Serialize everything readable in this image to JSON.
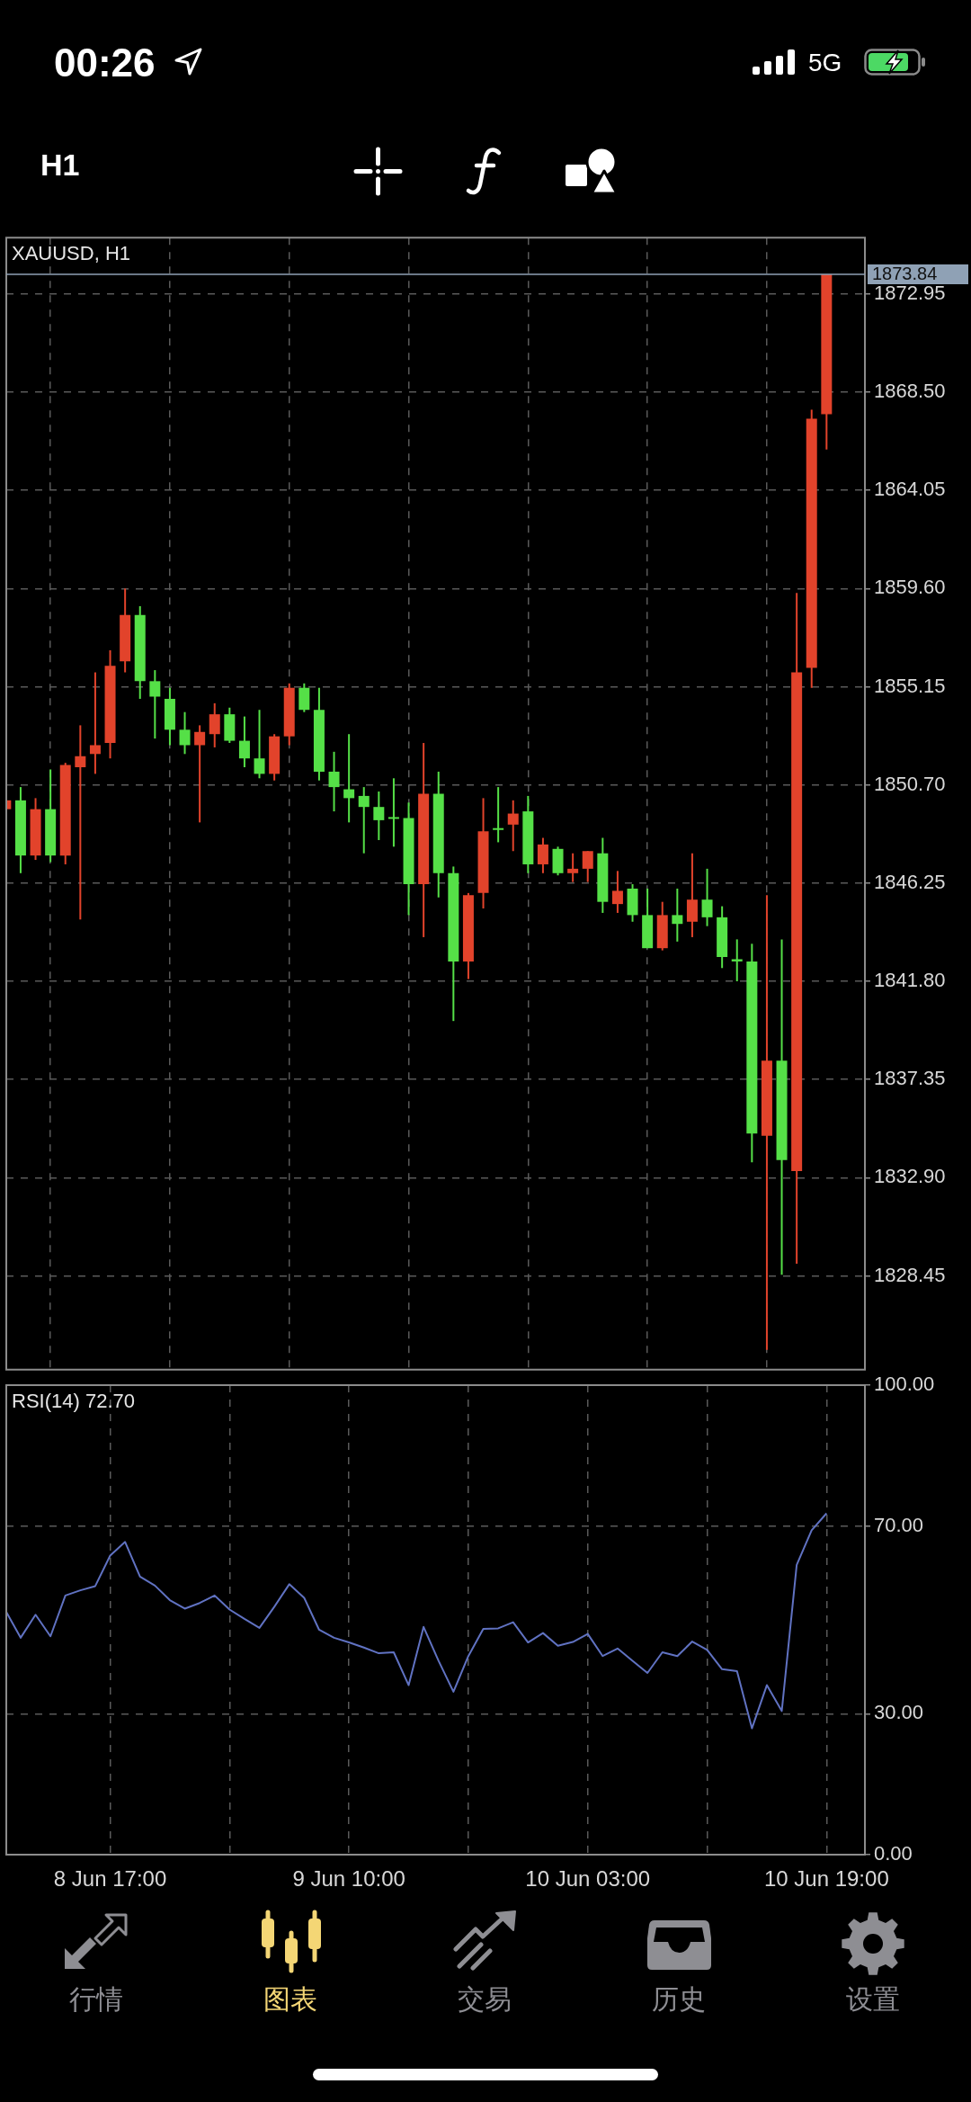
{
  "chart_data": [
    {
      "type": "other",
      "annotations": [
        "00:26",
        "5G",
        "H1"
      ]
    },
    {
      "type": "candlestick",
      "title": "XAUUSD, H1",
      "categories": [
        null,
        null,
        null,
        null,
        null,
        null,
        null,
        null,
        null,
        null,
        null,
        null,
        null,
        null,
        null,
        null,
        null,
        null,
        null,
        null,
        null,
        null,
        null,
        null,
        null,
        null,
        null,
        null,
        null,
        null,
        null,
        null,
        null,
        null,
        null,
        null,
        null,
        null,
        null,
        null,
        null,
        null,
        null,
        null,
        null,
        null,
        null,
        null,
        null,
        null,
        null,
        null,
        null,
        null,
        null,
        null
      ],
      "ohlc": [
        [
          1849.6,
          1850.0,
          1849.5,
          1850.0
        ],
        [
          1850.0,
          1850.6,
          1846.7,
          1847.5
        ],
        [
          1847.5,
          1850.1,
          1847.3,
          1849.6
        ],
        [
          1849.6,
          1851.4,
          1847.2,
          1847.5
        ],
        [
          1847.5,
          1851.7,
          1847.1,
          1851.6
        ],
        [
          1851.5,
          1853.4,
          1844.6,
          1852.0
        ],
        [
          1852.1,
          1855.8,
          1851.2,
          1852.5
        ],
        [
          1852.6,
          1856.8,
          1851.9,
          1856.1
        ],
        [
          1856.3,
          1859.6,
          1855.8,
          1858.4
        ],
        [
          1858.4,
          1858.8,
          1854.6,
          1855.4
        ],
        [
          1855.4,
          1855.9,
          1852.8,
          1854.7
        ],
        [
          1854.6,
          1855.1,
          1852.5,
          1853.2
        ],
        [
          1853.2,
          1854.0,
          1852.1,
          1852.5
        ],
        [
          1852.5,
          1853.4,
          1849.0,
          1853.1
        ],
        [
          1853.0,
          1854.4,
          1852.4,
          1853.9
        ],
        [
          1853.9,
          1854.2,
          1852.6,
          1852.7
        ],
        [
          1852.7,
          1853.8,
          1851.5,
          1851.9
        ],
        [
          1851.9,
          1854.1,
          1851.0,
          1851.2
        ],
        [
          1851.2,
          1853.0,
          1850.9,
          1852.9
        ],
        [
          1852.9,
          1855.3,
          1852.5,
          1855.1
        ],
        [
          1855.1,
          1855.3,
          1854.0,
          1854.1
        ],
        [
          1854.1,
          1855.1,
          1850.9,
          1851.3
        ],
        [
          1851.3,
          1852.2,
          1849.5,
          1850.6
        ],
        [
          1850.5,
          1853.0,
          1849.0,
          1850.1
        ],
        [
          1850.2,
          1850.6,
          1847.6,
          1849.7
        ],
        [
          1849.7,
          1850.4,
          1848.2,
          1849.1
        ],
        [
          1849.2,
          1851.0,
          1847.9,
          1849.2
        ],
        [
          1849.2,
          1849.9,
          1844.8,
          1846.2
        ],
        [
          1846.2,
          1852.6,
          1843.8,
          1850.3
        ],
        [
          1850.3,
          1851.3,
          1845.6,
          1846.7
        ],
        [
          1846.7,
          1847.0,
          1840.0,
          1842.7
        ],
        [
          1842.7,
          1845.8,
          1841.9,
          1845.7
        ],
        [
          1845.8,
          1850.1,
          1845.1,
          1848.6
        ],
        [
          1848.7,
          1850.6,
          1848.1,
          1848.7
        ],
        [
          1848.9,
          1850.0,
          1847.7,
          1849.4
        ],
        [
          1849.5,
          1850.2,
          1846.7,
          1847.1
        ],
        [
          1847.1,
          1848.3,
          1846.7,
          1848.0
        ],
        [
          1847.8,
          1847.9,
          1846.6,
          1846.7
        ],
        [
          1846.7,
          1847.6,
          1846.3,
          1846.9
        ],
        [
          1846.9,
          1847.7,
          1846.3,
          1847.7
        ],
        [
          1847.6,
          1848.3,
          1844.9,
          1845.4
        ],
        [
          1845.3,
          1846.8,
          1844.9,
          1845.9
        ],
        [
          1846.0,
          1846.2,
          1844.5,
          1844.8
        ],
        [
          1844.8,
          1846.0,
          1843.3,
          1843.3
        ],
        [
          1843.3,
          1845.4,
          1843.2,
          1844.8
        ],
        [
          1844.8,
          1846.0,
          1843.6,
          1844.4
        ],
        [
          1844.5,
          1847.6,
          1843.8,
          1845.5
        ],
        [
          1845.5,
          1846.9,
          1844.3,
          1844.7
        ],
        [
          1844.7,
          1845.2,
          1842.4,
          1842.9
        ],
        [
          1842.8,
          1843.7,
          1841.8,
          1842.7
        ],
        [
          1842.7,
          1843.5,
          1833.6,
          1834.9
        ],
        [
          1834.8,
          1845.7,
          1825.1,
          1838.2
        ],
        [
          1838.2,
          1843.7,
          1828.5,
          1833.7
        ],
        [
          1833.2,
          1859.4,
          1829.0,
          1855.8
        ],
        [
          1856.0,
          1867.7,
          1855.1,
          1867.3
        ],
        [
          1867.5,
          1873.84,
          1865.9,
          1873.84
        ]
      ],
      "colors": [
        "#e2432b",
        "#55e047",
        "#e2432b",
        "#55e047",
        "#e2432b",
        "#e2432b",
        "#e2432b",
        "#e2432b",
        "#e2432b",
        "#55e047",
        "#55e047",
        "#55e047",
        "#55e047",
        "#e2432b",
        "#e2432b",
        "#55e047",
        "#55e047",
        "#55e047",
        "#e2432b",
        "#e2432b",
        "#55e047",
        "#55e047",
        "#55e047",
        "#55e047",
        "#55e047",
        "#55e047",
        "#55e047",
        "#55e047",
        "#e2432b",
        "#55e047",
        "#55e047",
        "#e2432b",
        "#e2432b",
        "#55e047",
        "#e2432b",
        "#55e047",
        "#e2432b",
        "#55e047",
        "#e2432b",
        "#e2432b",
        "#55e047",
        "#e2432b",
        "#55e047",
        "#55e047",
        "#e2432b",
        "#55e047",
        "#e2432b",
        "#55e047",
        "#55e047",
        "#55e047",
        "#55e047",
        "#e2432b",
        "#55e047",
        "#e2432b",
        "#e2432b",
        "#e2432b"
      ],
      "ylim": [
        1824.2,
        1875.5
      ],
      "yticks": [
        1828.45,
        {
          "value": 1832.9,
          "label": "1832.90"
        },
        1837.35,
        {
          "value": 1841.8,
          "label": "1841.80"
        },
        1846.25,
        {
          "value": 1850.7,
          "label": "1850.70"
        },
        1855.15,
        {
          "value": 1859.6,
          "label": "1859.60"
        },
        1864.05,
        {
          "value": 1868.5,
          "label": "1868.50"
        },
        1872.95
      ],
      "ref_lines": [
        {
          "axis": "y",
          "value": 1873.84,
          "label": "1873.84",
          "color": "#8fa1b5"
        }
      ],
      "grid": true,
      "tick_labels": "y"
    },
    {
      "type": "line",
      "title": "RSI(14) 72.70",
      "categories": [
        null,
        null,
        null,
        null,
        null,
        null,
        null,
        "8 Jun 17:00",
        null,
        null,
        null,
        null,
        null,
        null,
        null,
        null,
        null,
        null,
        null,
        null,
        null,
        null,
        null,
        "9 Jun 10:00",
        null,
        null,
        null,
        null,
        null,
        null,
        null,
        null,
        null,
        null,
        null,
        null,
        null,
        null,
        null,
        "10 Jun 03:00",
        null,
        null,
        null,
        null,
        null,
        null,
        null,
        null,
        null,
        null,
        null,
        null,
        null,
        null,
        null,
        "10 Jun 19:00"
      ],
      "values": [
        51.9,
        46.2,
        51.1,
        46.5,
        55.2,
        56.3,
        57.2,
        63.7,
        66.6,
        59.2,
        57.3,
        54.2,
        52.4,
        53.6,
        55.2,
        52.2,
        50.2,
        48.3,
        52.8,
        57.6,
        54.7,
        47.9,
        46.2,
        45.2,
        44.1,
        42.9,
        43.1,
        36.1,
        48.5,
        41.3,
        34.7,
        42.3,
        48.1,
        48.2,
        49.5,
        45.2,
        47.2,
        44.5,
        45.3,
        47.0,
        42.3,
        43.9,
        41.3,
        38.7,
        43.1,
        42.3,
        45.4,
        43.6,
        39.5,
        39.1,
        26.9,
        36.1,
        30.6,
        61.7,
        69.1,
        72.7
      ],
      "color": "#6072c2",
      "ylim": [
        0,
        100
      ],
      "yticks": [
        {
          "value": 0,
          "label": "0.00"
        },
        {
          "value": 30,
          "label": "30.00"
        },
        {
          "value": 70,
          "label": "70.00"
        },
        {
          "value": 100,
          "label": "100.00"
        }
      ],
      "grid": true
    },
    {
      "type": "other",
      "annotations": [
        "行情",
        "图表",
        "交易",
        "历史",
        "设置"
      ]
    }
  ]
}
